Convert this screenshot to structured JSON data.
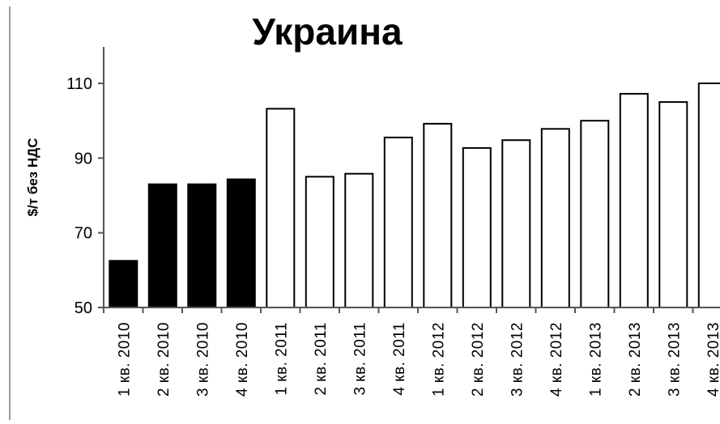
{
  "chart_data": {
    "type": "bar",
    "title": "Украина",
    "xlabel": "",
    "ylabel": "$/т без НДС",
    "ylim": [
      50,
      120
    ],
    "yticks": [
      50,
      70,
      90,
      110
    ],
    "grid": false,
    "categories": [
      "1 кв. 2010",
      "2 кв. 2010",
      "3 кв. 2010",
      "4 кв. 2010",
      "1 кв. 2011",
      "2 кв. 2011",
      "3 кв. 2011",
      "4 кв. 2011",
      "1 кв. 2012",
      "2 кв. 2012",
      "3 кв. 2012",
      "4 кв. 2012",
      "1 кв. 2013",
      "2 кв. 2013",
      "3 кв. 2013",
      "4 кв. 2013"
    ],
    "values": [
      62.5,
      83,
      83,
      84.3,
      103.2,
      85,
      85.8,
      95.5,
      99.2,
      92.7,
      94.8,
      97.8,
      100,
      107.2,
      105,
      110
    ],
    "bar_fills": [
      "#000000",
      "#000000",
      "#000000",
      "#000000",
      "#ffffff",
      "#ffffff",
      "#ffffff",
      "#ffffff",
      "#ffffff",
      "#ffffff",
      "#ffffff",
      "#ffffff",
      "#ffffff",
      "#ffffff",
      "#ffffff",
      "#ffffff"
    ],
    "bar_stroke": "#000000",
    "axis_color": "#555555"
  }
}
